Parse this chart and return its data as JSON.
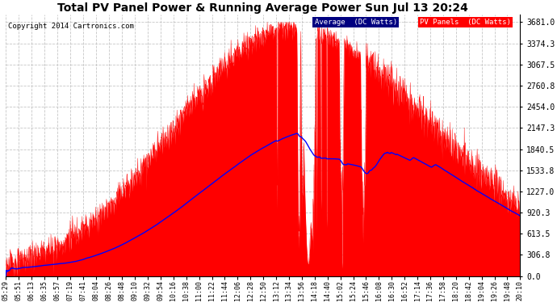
{
  "title": "Total PV Panel Power & Running Average Power Sun Jul 13 20:24",
  "copyright": "Copyright 2014 Cartronics.com",
  "ylabel_right": [
    "0.0",
    "306.8",
    "613.5",
    "920.3",
    "1227.0",
    "1533.8",
    "1840.5",
    "2147.3",
    "2454.0",
    "2760.8",
    "3067.5",
    "3374.3",
    "3681.0"
  ],
  "ymax": 3681.0,
  "ymin": 0.0,
  "legend_avg_label": "Average  (DC Watts)",
  "legend_pv_label": "PV Panels  (DC Watts)",
  "avg_color": "#0000ff",
  "pv_color": "#ff0000",
  "avg_bg": "#000080",
  "pv_bg": "#ff0000",
  "background_color": "#ffffff",
  "grid_color": "#c0c0c0",
  "x_tick_labels": [
    "05:29",
    "05:51",
    "06:13",
    "06:35",
    "06:57",
    "07:19",
    "07:41",
    "08:04",
    "08:26",
    "08:48",
    "09:10",
    "09:32",
    "09:54",
    "10:16",
    "10:38",
    "11:00",
    "11:22",
    "11:44",
    "12:06",
    "12:28",
    "12:50",
    "13:12",
    "13:34",
    "13:56",
    "14:18",
    "14:40",
    "15:02",
    "15:24",
    "15:46",
    "16:08",
    "16:30",
    "16:52",
    "17:14",
    "17:36",
    "17:58",
    "18:20",
    "18:42",
    "19:04",
    "19:26",
    "19:48",
    "20:10"
  ],
  "x_start_min": 329,
  "x_end_min": 1210,
  "figsize": [
    6.9,
    3.75
  ],
  "dpi": 100
}
